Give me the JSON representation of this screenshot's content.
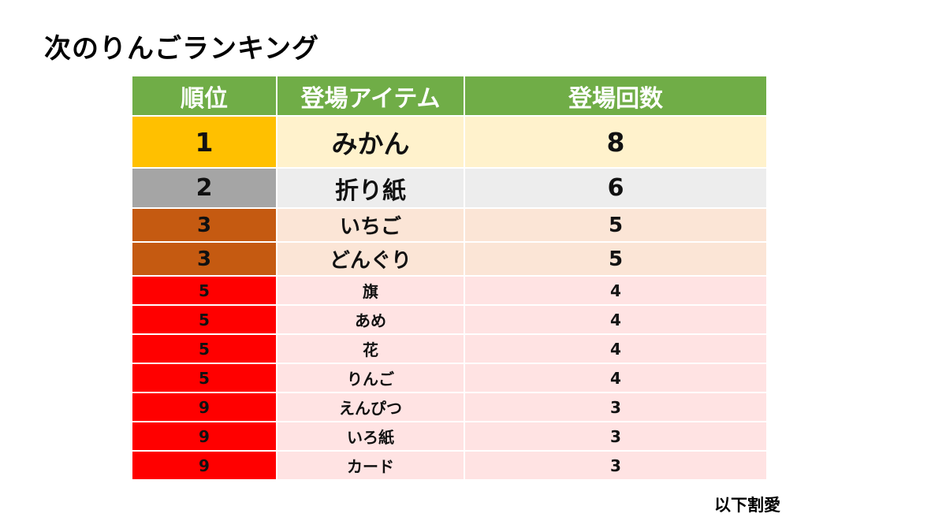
{
  "title": "次のりんごランキング",
  "table": {
    "headers": [
      "順位",
      "登場アイテム",
      "登場回数"
    ],
    "rows": [
      {
        "rank": "1",
        "item": "みかん",
        "count": "8"
      },
      {
        "rank": "2",
        "item": "折り紙",
        "count": "6"
      },
      {
        "rank": "3",
        "item": "いちご",
        "count": "5"
      },
      {
        "rank": "3",
        "item": "どんぐり",
        "count": "5"
      },
      {
        "rank": "5",
        "item": "旗",
        "count": "4"
      },
      {
        "rank": "5",
        "item": "あめ",
        "count": "4"
      },
      {
        "rank": "5",
        "item": "花",
        "count": "4"
      },
      {
        "rank": "5",
        "item": "りんご",
        "count": "4"
      },
      {
        "rank": "9",
        "item": "えんぴつ",
        "count": "3"
      },
      {
        "rank": "9",
        "item": "いろ紙",
        "count": "3"
      },
      {
        "rank": "9",
        "item": "カード",
        "count": "3"
      }
    ]
  },
  "footnote": "以下割愛",
  "colors": {
    "header_green": "#70ad47",
    "gold": "#ffc000",
    "silver": "#a5a5a5",
    "bronze": "#c55a11",
    "red": "#ff0000"
  }
}
